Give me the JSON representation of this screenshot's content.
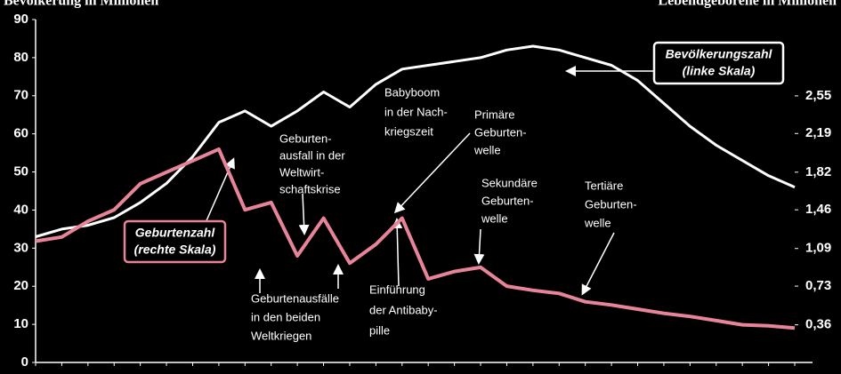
{
  "chart_data": {
    "type": "line",
    "y_label": "Bevölkerung in Millionen",
    "y2_label": "Lebendgeborene in Millionen",
    "categories": [
      null,
      null,
      null,
      null,
      null,
      null,
      null,
      null,
      null,
      null,
      null,
      null,
      null,
      null,
      null,
      null,
      null,
      null,
      null,
      null,
      null,
      null,
      null,
      null,
      null,
      null,
      null,
      null,
      null,
      null
    ],
    "series": [
      {
        "name": "Bevölkerungszahl",
        "note": "(linke Skala)",
        "color": "#ffffff",
        "values": [
          33,
          35,
          36,
          38,
          42,
          47,
          54,
          63,
          66,
          62,
          66,
          71,
          67,
          73,
          77,
          78,
          79,
          80,
          82,
          83,
          82,
          80,
          78,
          74,
          68,
          62,
          57,
          53,
          49,
          46
        ]
      },
      {
        "name": "Geburtenzahl",
        "note": "(rechte Skala)",
        "color": "#e8849a",
        "axis": "y2",
        "values": [
          1.16,
          1.2,
          1.35,
          1.46,
          1.71,
          1.82,
          1.93,
          2.04,
          1.46,
          1.53,
          1.02,
          1.38,
          0.95,
          1.13,
          1.38,
          0.8,
          0.87,
          0.91,
          0.73,
          0.69,
          0.66,
          0.58,
          0.55,
          0.51,
          0.47,
          0.44,
          0.4,
          0.36,
          0.35,
          0.33
        ]
      }
    ],
    "ylim": [
      0,
      90
    ],
    "yticks": [
      0,
      10,
      20,
      30,
      40,
      50,
      60,
      70,
      80,
      90
    ],
    "y2lim": [
      0,
      3.28
    ],
    "y2ticks": [
      {
        "value": 0.36,
        "label": "0,36"
      },
      {
        "value": 0.73,
        "label": "0,73"
      },
      {
        "value": 1.09,
        "label": "1,09"
      },
      {
        "value": 1.46,
        "label": "1,46"
      },
      {
        "value": 1.82,
        "label": "1,82"
      },
      {
        "value": 2.19,
        "label": "2,19"
      },
      {
        "value": 2.55,
        "label": "2,55"
      }
    ],
    "annotations": [
      [
        "Babyboom",
        "in der Nach-",
        "kriegszeit"
      ],
      [
        "Primäre",
        "Geburten-",
        "welle"
      ],
      [
        "Geburten-",
        "ausfall in der",
        "Weltwirt-",
        "schaftskrise"
      ],
      [
        "Sekundäre",
        "Geburten-",
        "welle"
      ],
      [
        "Tertiäre",
        "Geburten-",
        "welle"
      ],
      [
        "Geburtenausfälle",
        "in den beiden",
        "Weltkriegen"
      ],
      [
        "Einführung",
        "der Antibaby-",
        "pille"
      ]
    ]
  }
}
